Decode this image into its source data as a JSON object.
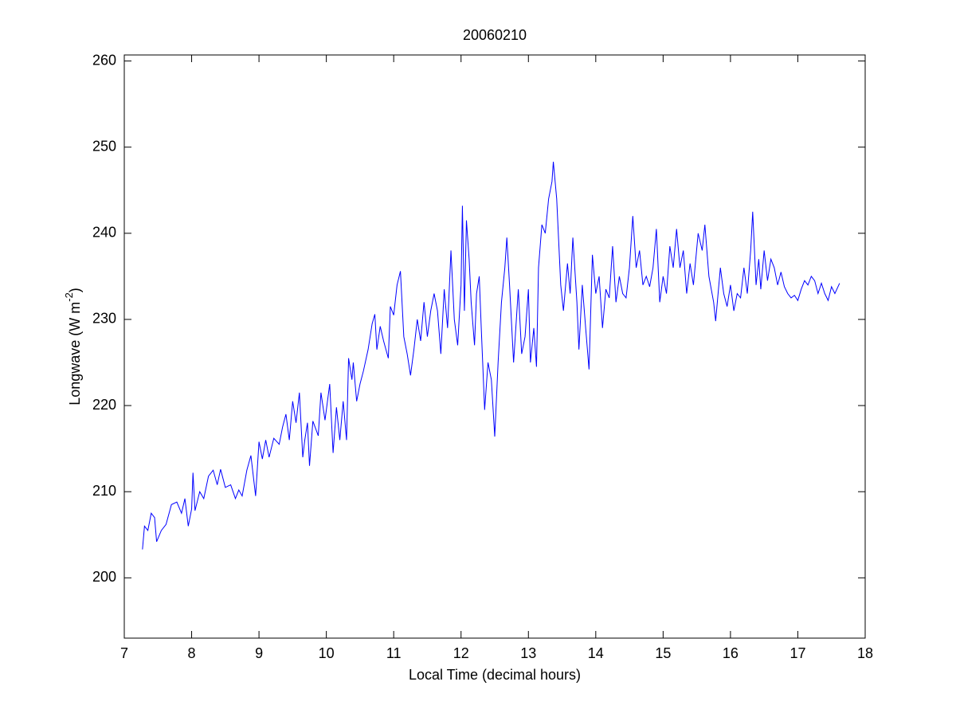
{
  "chart_data": {
    "type": "line",
    "title": "20060210",
    "xlabel": "Local Time (decimal hours)",
    "ylabel_parts": [
      "Longwave (W m",
      "-2",
      ")"
    ],
    "xlim": [
      7,
      18
    ],
    "xticks": [
      7,
      8,
      9,
      10,
      11,
      12,
      13,
      14,
      15,
      16,
      17,
      18
    ],
    "ylim": [
      193,
      260.7
    ],
    "yticks": [
      200,
      210,
      220,
      230,
      240,
      250,
      260
    ],
    "grid": false,
    "series": [
      {
        "color": "#0000ff",
        "x": [
          7.27,
          7.3,
          7.35,
          7.4,
          7.45,
          7.48,
          7.55,
          7.62,
          7.7,
          7.78,
          7.85,
          7.9,
          7.95,
          8.0,
          8.02,
          8.05,
          8.12,
          8.18,
          8.25,
          8.32,
          8.38,
          8.43,
          8.5,
          8.58,
          8.65,
          8.7,
          8.75,
          8.82,
          8.88,
          8.95,
          9.0,
          9.05,
          9.1,
          9.15,
          9.22,
          9.3,
          9.35,
          9.4,
          9.45,
          9.5,
          9.55,
          9.6,
          9.65,
          9.68,
          9.72,
          9.75,
          9.8,
          9.88,
          9.92,
          9.98,
          10.05,
          10.1,
          10.15,
          10.2,
          10.25,
          10.3,
          10.33,
          10.38,
          10.4,
          10.45,
          10.5,
          10.55,
          10.62,
          10.68,
          10.72,
          10.75,
          10.8,
          10.85,
          10.92,
          10.95,
          11.0,
          11.05,
          11.1,
          11.15,
          11.2,
          11.25,
          11.3,
          11.35,
          11.4,
          11.45,
          11.5,
          11.55,
          11.6,
          11.65,
          11.7,
          11.75,
          11.8,
          11.85,
          11.9,
          11.95,
          12.0,
          12.02,
          12.05,
          12.08,
          12.12,
          12.15,
          12.2,
          12.23,
          12.27,
          12.3,
          12.35,
          12.4,
          12.45,
          12.5,
          12.55,
          12.6,
          12.65,
          12.68,
          12.72,
          12.78,
          12.85,
          12.9,
          12.95,
          13.0,
          13.03,
          13.08,
          13.12,
          13.15,
          13.2,
          13.25,
          13.3,
          13.35,
          13.37,
          13.42,
          13.48,
          13.52,
          13.58,
          13.62,
          13.66,
          13.72,
          13.75,
          13.8,
          13.85,
          13.9,
          13.95,
          14.0,
          14.05,
          14.1,
          14.15,
          14.2,
          14.25,
          14.3,
          14.35,
          14.4,
          14.45,
          14.5,
          14.55,
          14.6,
          14.65,
          14.7,
          14.75,
          14.8,
          14.85,
          14.9,
          14.95,
          15.0,
          15.05,
          15.1,
          15.15,
          15.2,
          15.25,
          15.3,
          15.35,
          15.4,
          15.45,
          15.52,
          15.58,
          15.62,
          15.68,
          15.75,
          15.78,
          15.85,
          15.9,
          15.95,
          16.0,
          16.05,
          16.1,
          16.15,
          16.2,
          16.25,
          16.3,
          16.33,
          16.38,
          16.42,
          16.45,
          16.5,
          16.55,
          16.6,
          16.65,
          16.7,
          16.75,
          16.8,
          16.85,
          16.9,
          16.95,
          17.0,
          17.05,
          17.1,
          17.15,
          17.2,
          17.25,
          17.3,
          17.35,
          17.4,
          17.45,
          17.5,
          17.55,
          17.62
        ],
        "values": [
          203.3,
          206,
          205.5,
          207.5,
          207,
          204.2,
          205.5,
          206.2,
          208.5,
          208.8,
          207.5,
          209.2,
          206,
          208,
          212.2,
          207.8,
          210,
          209.2,
          211.8,
          212.5,
          210.8,
          212.6,
          210.5,
          210.8,
          209.2,
          210.2,
          209.5,
          212.5,
          214.2,
          209.5,
          215.8,
          213.8,
          216,
          214,
          216.2,
          215.5,
          217.5,
          219,
          216,
          220.5,
          218,
          221.5,
          214,
          216,
          218,
          213,
          218.2,
          216.5,
          221.5,
          218.3,
          222.5,
          214.5,
          219.8,
          216,
          220.5,
          216,
          225.5,
          223,
          225,
          220.5,
          222.5,
          224,
          226.5,
          229.5,
          230.6,
          226.5,
          229.2,
          227.5,
          225.5,
          231.5,
          230.5,
          234,
          235.6,
          228,
          226,
          223.5,
          226.5,
          230,
          227.5,
          232,
          228,
          231,
          233,
          231,
          226,
          233.5,
          229,
          238,
          230,
          227,
          234,
          243.2,
          231,
          241.5,
          237,
          232,
          227,
          233,
          235,
          229,
          219.5,
          225,
          223,
          216.4,
          225,
          232,
          236,
          239.5,
          234,
          225,
          233.5,
          226,
          228,
          233.5,
          225,
          229,
          224.5,
          236,
          241,
          240,
          244,
          246,
          248.3,
          244,
          234,
          231,
          236.5,
          233,
          239.5,
          232,
          226.5,
          234,
          229,
          224.2,
          237.5,
          233,
          235,
          229,
          233.5,
          232.5,
          238.5,
          232,
          235,
          233,
          232.5,
          236,
          242,
          236,
          238,
          234,
          235,
          233.8,
          236,
          240.5,
          232,
          235,
          233,
          238.5,
          236,
          240.5,
          236,
          238,
          233,
          236.5,
          234,
          240,
          238,
          241,
          235,
          232,
          229.8,
          236,
          233,
          231.5,
          234,
          231,
          233,
          232.5,
          236,
          233,
          238,
          242.5,
          234,
          237,
          233.5,
          238,
          234.5,
          237,
          236,
          234,
          235.5,
          233.8,
          233,
          232.5,
          232.8,
          232.2,
          233.5,
          234.5,
          234,
          235,
          234.5,
          233,
          234.2,
          233,
          232.2,
          233.8,
          233,
          234.2
        ]
      }
    ]
  }
}
